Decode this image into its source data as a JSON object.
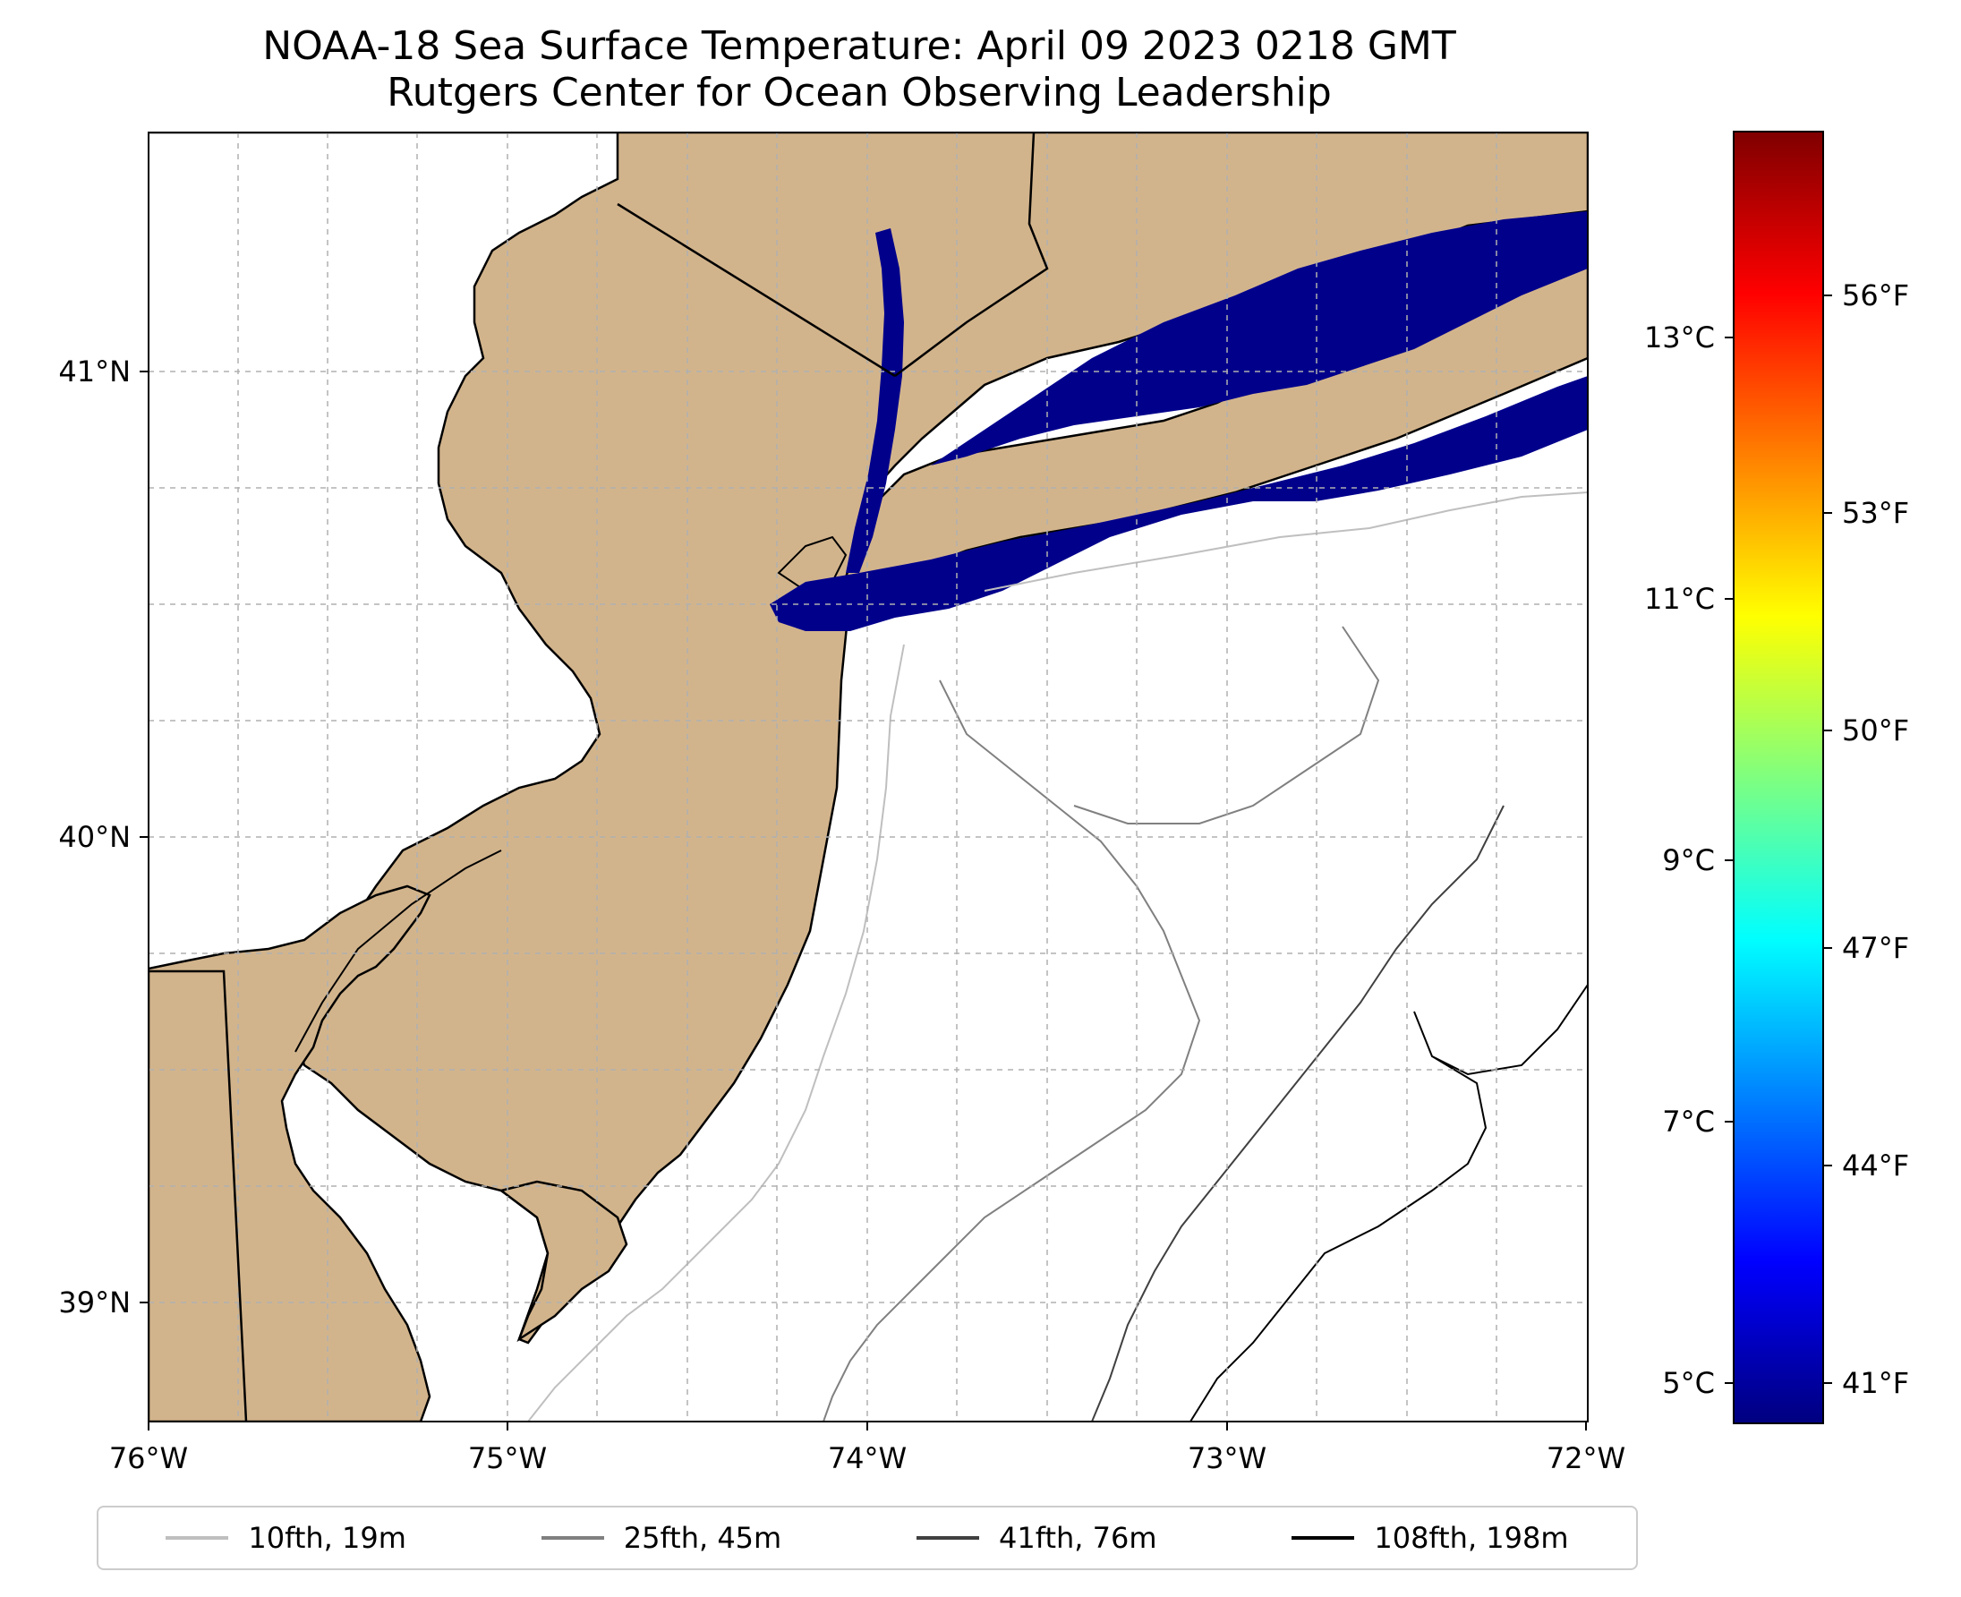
{
  "title": {
    "line1": "NOAA-18 Sea Surface Temperature: April 09 2023 0218 GMT",
    "line2": "Rutgers Center for Ocean Observing Leadership"
  },
  "map": {
    "land_color": "#d2b48c",
    "sst_color": "#00008b",
    "x_ticks": [
      "76°W",
      "75°W",
      "74°W",
      "73°W",
      "72°W"
    ],
    "y_ticks": [
      "41°N",
      "40°N",
      "39°N"
    ]
  },
  "colorbar": {
    "celsius_ticks": [
      "13°C",
      "11°C",
      "9°C",
      "7°C",
      "5°C"
    ],
    "fahrenheit_ticks": [
      "56°F",
      "53°F",
      "50°F",
      "47°F",
      "44°F",
      "41°F"
    ],
    "stops": [
      "#00007f",
      "#0000ff",
      "#007fff",
      "#00ffff",
      "#7fff7f",
      "#ffff00",
      "#ff7f00",
      "#ff0000",
      "#7f0000"
    ]
  },
  "legend": [
    {
      "label": "10fth, 19m",
      "color": "#bfbfbf"
    },
    {
      "label": "25fth, 45m",
      "color": "#808080"
    },
    {
      "label": "41fth, 76m",
      "color": "#404040"
    },
    {
      "label": "108fth, 198m",
      "color": "#000000"
    }
  ]
}
